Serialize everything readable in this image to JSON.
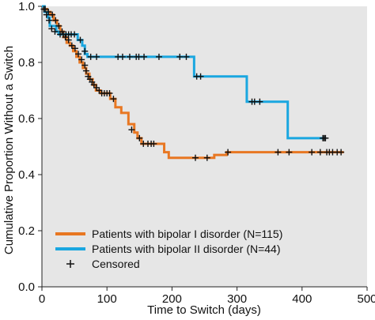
{
  "chart_data": {
    "type": "line",
    "xlabel": "Time to Switch (days)",
    "ylabel": "Cumulative Proportion Without a Switch",
    "xlim": [
      0,
      500
    ],
    "ylim": [
      0,
      1.0
    ],
    "xticks": [
      0,
      100,
      200,
      300,
      400,
      500
    ],
    "yticks": [
      0.0,
      0.2,
      0.4,
      0.6,
      0.8,
      1.0
    ],
    "xtick_labels": [
      "0",
      "100",
      "200",
      "300",
      "400",
      "500"
    ],
    "ytick_labels": [
      "0.0",
      "0.2",
      "0.4",
      "0.6",
      "0.8",
      "1.0"
    ],
    "plot_background": "#e6e6e6",
    "legend_position": "bottom-left",
    "series": [
      {
        "name": "Patients with bipolar I disorder (N=115)",
        "color": "#e87722",
        "step": [
          [
            0,
            1.0
          ],
          [
            3,
            0.99
          ],
          [
            8,
            0.98
          ],
          [
            13,
            0.97
          ],
          [
            18,
            0.95
          ],
          [
            23,
            0.93
          ],
          [
            28,
            0.91
          ],
          [
            33,
            0.89
          ],
          [
            38,
            0.87
          ],
          [
            43,
            0.86
          ],
          [
            48,
            0.84
          ],
          [
            53,
            0.82
          ],
          [
            58,
            0.8
          ],
          [
            63,
            0.78
          ],
          [
            68,
            0.76
          ],
          [
            73,
            0.74
          ],
          [
            78,
            0.72
          ],
          [
            83,
            0.7
          ],
          [
            90,
            0.69
          ],
          [
            105,
            0.67
          ],
          [
            113,
            0.64
          ],
          [
            122,
            0.62
          ],
          [
            133,
            0.58
          ],
          [
            142,
            0.55
          ],
          [
            147,
            0.53
          ],
          [
            153,
            0.51
          ],
          [
            176,
            0.51
          ],
          [
            188,
            0.48
          ],
          [
            195,
            0.46
          ],
          [
            230,
            0.46
          ],
          [
            265,
            0.47
          ],
          [
            284,
            0.48
          ],
          [
            464,
            0.48
          ]
        ],
        "censored": [
          [
            5,
            0.99
          ],
          [
            10,
            0.98
          ],
          [
            16,
            0.97
          ],
          [
            21,
            0.95
          ],
          [
            26,
            0.93
          ],
          [
            31,
            0.91
          ],
          [
            36,
            0.89
          ],
          [
            41,
            0.88
          ],
          [
            46,
            0.86
          ],
          [
            51,
            0.85
          ],
          [
            56,
            0.83
          ],
          [
            61,
            0.81
          ],
          [
            66,
            0.79
          ],
          [
            68,
            0.77
          ],
          [
            71,
            0.75
          ],
          [
            74,
            0.74
          ],
          [
            77,
            0.73
          ],
          [
            80,
            0.72
          ],
          [
            84,
            0.71
          ],
          [
            88,
            0.7
          ],
          [
            92,
            0.69
          ],
          [
            96,
            0.69
          ],
          [
            100,
            0.69
          ],
          [
            104,
            0.69
          ],
          [
            110,
            0.67
          ],
          [
            138,
            0.56
          ],
          [
            150,
            0.53
          ],
          [
            156,
            0.51
          ],
          [
            163,
            0.51
          ],
          [
            168,
            0.51
          ],
          [
            172,
            0.51
          ],
          [
            236,
            0.46
          ],
          [
            254,
            0.46
          ],
          [
            286,
            0.48
          ],
          [
            363,
            0.48
          ],
          [
            380,
            0.48
          ],
          [
            415,
            0.48
          ],
          [
            428,
            0.48
          ],
          [
            438,
            0.48
          ],
          [
            442,
            0.48
          ],
          [
            447,
            0.48
          ],
          [
            454,
            0.48
          ],
          [
            460,
            0.48
          ]
        ]
      },
      {
        "name": "Patients with bipolar II disorder (N=44)",
        "color": "#1aa7e0",
        "step": [
          [
            0,
            1.0
          ],
          [
            4,
            0.98
          ],
          [
            9,
            0.96
          ],
          [
            12,
            0.93
          ],
          [
            22,
            0.91
          ],
          [
            26,
            0.9
          ],
          [
            55,
            0.88
          ],
          [
            62,
            0.86
          ],
          [
            66,
            0.83
          ],
          [
            70,
            0.82
          ],
          [
            234,
            0.82
          ],
          [
            234,
            0.75
          ],
          [
            315,
            0.75
          ],
          [
            315,
            0.66
          ],
          [
            378,
            0.66
          ],
          [
            378,
            0.53
          ],
          [
            437,
            0.53
          ]
        ],
        "censored": [
          [
            3,
            0.99
          ],
          [
            7,
            0.97
          ],
          [
            11,
            0.95
          ],
          [
            15,
            0.92
          ],
          [
            20,
            0.91
          ],
          [
            28,
            0.9
          ],
          [
            33,
            0.9
          ],
          [
            37,
            0.9
          ],
          [
            41,
            0.9
          ],
          [
            45,
            0.9
          ],
          [
            50,
            0.9
          ],
          [
            59,
            0.88
          ],
          [
            66,
            0.84
          ],
          [
            75,
            0.82
          ],
          [
            84,
            0.82
          ],
          [
            117,
            0.82
          ],
          [
            124,
            0.82
          ],
          [
            135,
            0.82
          ],
          [
            145,
            0.82
          ],
          [
            149,
            0.82
          ],
          [
            157,
            0.82
          ],
          [
            180,
            0.82
          ],
          [
            212,
            0.82
          ],
          [
            222,
            0.82
          ],
          [
            238,
            0.75
          ],
          [
            244,
            0.75
          ],
          [
            323,
            0.66
          ],
          [
            327,
            0.66
          ],
          [
            335,
            0.66
          ],
          [
            432,
            0.53
          ],
          [
            434,
            0.53
          ],
          [
            436,
            0.53
          ]
        ]
      }
    ],
    "legend": {
      "censored_label": "Censored"
    }
  }
}
